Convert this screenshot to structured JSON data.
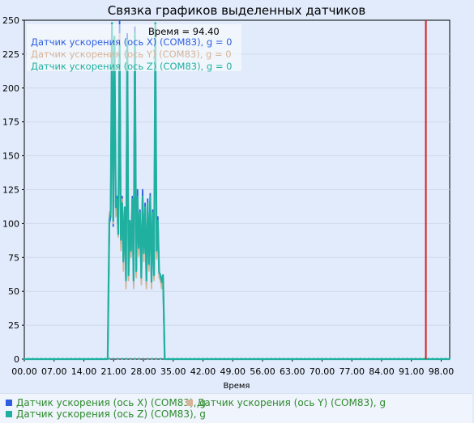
{
  "chart_data": {
    "type": "line",
    "title": "Связка графиков выделенных датчиков",
    "xlabel": "Время",
    "ylabel": "",
    "xlim": [
      0,
      100
    ],
    "ylim": [
      0,
      250
    ],
    "x_ticks": [
      "00.00",
      "07.00",
      "14.00",
      "21.00",
      "28.00",
      "35.00",
      "42.00",
      "49.00",
      "56.00",
      "63.00",
      "70.00",
      "77.00",
      "84.00",
      "91.00",
      "98.00"
    ],
    "x_tick_values": [
      0,
      7,
      14,
      21,
      28,
      35,
      42,
      49,
      56,
      63,
      70,
      77,
      84,
      91,
      98
    ],
    "y_ticks": [
      0,
      25,
      50,
      75,
      100,
      125,
      150,
      175,
      200,
      225,
      250
    ],
    "grid": true,
    "cursor": {
      "label": "Время = 94.40",
      "x": 94.4,
      "color": "#d32222"
    },
    "series": [
      {
        "name": "Датчик ускорения (ось X) (COM83), g",
        "color": "#2f5fe0",
        "readout": "Датчик ускорения (ось X) (COM83), g = 0",
        "x": [
          0,
          18,
          19.6,
          20.0,
          20.3,
          20.6,
          20.9,
          21.2,
          21.5,
          21.8,
          22.1,
          22.4,
          22.7,
          23.0,
          23.3,
          23.6,
          23.9,
          24.2,
          24.5,
          24.8,
          25.1,
          25.4,
          25.7,
          26.0,
          26.3,
          26.6,
          26.9,
          27.2,
          27.5,
          27.8,
          28.1,
          28.4,
          28.7,
          29.0,
          29.3,
          29.6,
          29.9,
          30.2,
          30.5,
          30.8,
          31.1,
          31.4,
          31.7,
          32.0,
          32.3,
          32.6,
          33,
          100
        ],
        "values": [
          0,
          0,
          0,
          100,
          105,
          240,
          98,
          230,
          110,
          120,
          95,
          250,
          85,
          120,
          70,
          110,
          55,
          240,
          60,
          100,
          78,
          120,
          55,
          245,
          62,
          125,
          80,
          110,
          58,
          125,
          75,
          115,
          55,
          118,
          68,
          122,
          55,
          110,
          60,
          245,
          78,
          105,
          62,
          60,
          55,
          60,
          0,
          0
        ]
      },
      {
        "name": "Датчик ускорения (ось Y) (COM83), g",
        "color": "#d6b497",
        "readout": "Датчик ускорения (ось Y) (COM83), g = 0",
        "x": [
          0,
          18,
          19.6,
          20.0,
          20.3,
          20.6,
          20.9,
          21.2,
          21.5,
          21.8,
          22.1,
          22.4,
          22.7,
          23.0,
          23.3,
          23.6,
          23.9,
          24.2,
          24.5,
          24.8,
          25.1,
          25.4,
          25.7,
          26.0,
          26.3,
          26.6,
          26.9,
          27.2,
          27.5,
          27.8,
          28.1,
          28.4,
          28.7,
          29.0,
          29.3,
          29.6,
          29.9,
          30.2,
          30.5,
          30.8,
          31.1,
          31.4,
          31.7,
          32.0,
          32.3,
          32.6,
          33,
          100
        ],
        "values": [
          0,
          0,
          0,
          108,
          110,
          235,
          100,
          225,
          105,
          115,
          90,
          240,
          80,
          118,
          65,
          105,
          52,
          232,
          58,
          98,
          75,
          115,
          52,
          238,
          60,
          118,
          76,
          106,
          55,
          118,
          72,
          110,
          52,
          112,
          65,
          116,
          52,
          106,
          58,
          238,
          74,
          100,
          60,
          58,
          52,
          58,
          0,
          0
        ]
      },
      {
        "name": "Датчик ускорения (ось Z) (COM83), g",
        "color": "#20b0a0",
        "readout": "Датчик ускорения (ось Z) (COM83), g = 0",
        "x": [
          0,
          18,
          19.6,
          20.0,
          20.3,
          20.6,
          20.9,
          21.2,
          21.5,
          21.8,
          22.1,
          22.4,
          22.7,
          23.0,
          23.3,
          23.6,
          23.9,
          24.2,
          24.5,
          24.8,
          25.1,
          25.4,
          25.7,
          26.0,
          26.3,
          26.6,
          26.9,
          27.2,
          27.5,
          27.8,
          28.1,
          28.4,
          28.7,
          29.0,
          29.3,
          29.6,
          29.9,
          30.2,
          30.5,
          30.8,
          31.1,
          31.4,
          31.7,
          32.0,
          32.3,
          32.6,
          33,
          100
        ],
        "values": [
          0,
          0,
          0,
          103,
          108,
          248,
          102,
          238,
          112,
          118,
          92,
          232,
          88,
          115,
          72,
          112,
          58,
          236,
          62,
          102,
          80,
          118,
          58,
          240,
          65,
          120,
          82,
          108,
          60,
          120,
          78,
          112,
          58,
          115,
          70,
          120,
          57,
          108,
          62,
          248,
          80,
          102,
          64,
          62,
          57,
          62,
          0,
          0
        ]
      }
    ],
    "legend": [
      {
        "name": "Датчик ускорения (ось X) (COM83), g",
        "color": "#2f5fe0"
      },
      {
        "name": "Датчик ускорения (ось Y) (COM83), g",
        "color": "#d6b497"
      },
      {
        "name": "Датчик ускорения (ось Z) (COM83), g",
        "color": "#20b0a0"
      }
    ]
  }
}
